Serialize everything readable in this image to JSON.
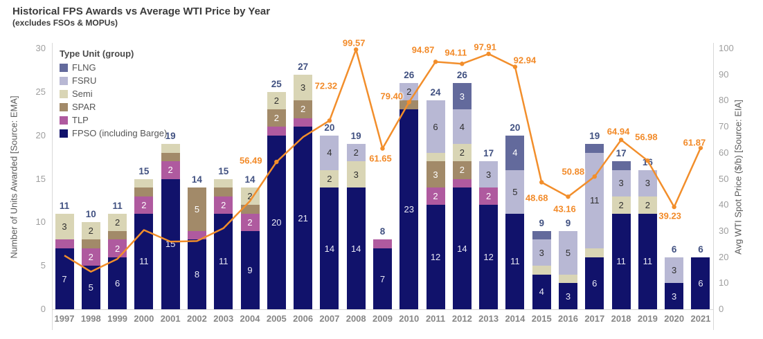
{
  "title": "Historical FPS Awards vs Average WTI Price by Year",
  "subtitle": "(excludes FSOs & MOPUs)",
  "legend": {
    "title": "Type Unit (group)",
    "items": [
      {
        "label": "FLNG",
        "color": "#636a9c"
      },
      {
        "label": "FSRU",
        "color": "#b8b8d4"
      },
      {
        "label": "Semi",
        "color": "#d9d5b5"
      },
      {
        "label": "SPAR",
        "color": "#a28a69"
      },
      {
        "label": "TLP",
        "color": "#af5a9f"
      },
      {
        "label": "FPSO (including Barge)",
        "color": "#11126b"
      }
    ]
  },
  "axes": {
    "left": {
      "title": "Number of Units Awarded [Source: EMA]",
      "ticks": [
        0,
        5,
        10,
        15,
        20,
        25,
        30
      ],
      "max": 30
    },
    "right": {
      "title": "Avg WTI Spot Price ($/b) [Source: EIA]",
      "ticks": [
        0,
        10,
        20,
        30,
        40,
        50,
        60,
        70,
        80,
        90,
        100
      ],
      "max": 100
    }
  },
  "chart_data": {
    "type": "bar+line",
    "title": "Historical FPS Awards vs Average WTI Price by Year",
    "categories": [
      "1997",
      "1998",
      "1999",
      "2000",
      "2001",
      "2002",
      "2003",
      "2004",
      "2005",
      "2006",
      "2007",
      "2008",
      "2009",
      "2010",
      "2011",
      "2012",
      "2013",
      "2014",
      "2015",
      "2016",
      "2017",
      "2018",
      "2019",
      "2020",
      "2021"
    ],
    "stack_order_bottom_to_top": [
      "fpso",
      "tlp",
      "spar",
      "semi",
      "fsru",
      "flng"
    ],
    "series": [
      {
        "key": "fpso",
        "name": "FPSO (including Barge)",
        "color": "#11126b",
        "values": [
          7,
          5,
          6,
          11,
          15,
          8,
          11,
          9,
          20,
          21,
          14,
          14,
          7,
          23,
          12,
          14,
          12,
          11,
          4,
          3,
          6,
          11,
          11,
          3,
          6
        ]
      },
      {
        "key": "tlp",
        "name": "TLP",
        "color": "#af5a9f",
        "values": [
          1,
          2,
          2,
          2,
          2,
          1,
          2,
          2,
          1,
          1,
          0,
          0,
          1,
          0,
          2,
          1,
          2,
          0,
          0,
          0,
          0,
          0,
          0,
          0,
          0
        ]
      },
      {
        "key": "spar",
        "name": "SPAR",
        "color": "#a28a69",
        "values": [
          0,
          1,
          1,
          1,
          1,
          5,
          1,
          1,
          2,
          2,
          0,
          0,
          0,
          1,
          3,
          2,
          0,
          0,
          0,
          0,
          0,
          0,
          0,
          0,
          0
        ]
      },
      {
        "key": "semi",
        "name": "Semi",
        "color": "#d9d5b5",
        "values": [
          3,
          2,
          2,
          1,
          1,
          0,
          1,
          2,
          2,
          3,
          2,
          3,
          0,
          0,
          1,
          2,
          0,
          0,
          1,
          1,
          1,
          2,
          2,
          0,
          0
        ]
      },
      {
        "key": "fsru",
        "name": "FSRU",
        "color": "#b8b8d4",
        "values": [
          0,
          0,
          0,
          0,
          0,
          0,
          0,
          0,
          0,
          0,
          4,
          2,
          0,
          2,
          6,
          4,
          3,
          5,
          3,
          5,
          11,
          3,
          3,
          3,
          0
        ]
      },
      {
        "key": "flng",
        "name": "FLNG",
        "color": "#636a9c",
        "values": [
          0,
          0,
          0,
          0,
          0,
          0,
          0,
          0,
          0,
          0,
          0,
          0,
          0,
          0,
          0,
          3,
          0,
          4,
          1,
          0,
          1,
          1,
          0,
          0,
          0
        ]
      }
    ],
    "totals": [
      11,
      10,
      11,
      15,
      19,
      14,
      15,
      14,
      25,
      27,
      20,
      19,
      8,
      26,
      24,
      26,
      17,
      20,
      9,
      9,
      19,
      17,
      16,
      6,
      6
    ],
    "line_series": {
      "name": "Avg WTI Spot Price ($/b)",
      "color": "#f28e2b",
      "values": [
        20.61,
        14.39,
        19.31,
        30.37,
        25.93,
        26.16,
        31.06,
        41.49,
        56.49,
        66.02,
        72.32,
        99.57,
        61.65,
        79.4,
        94.87,
        94.11,
        97.91,
        92.94,
        48.68,
        43.16,
        50.88,
        64.94,
        56.98,
        39.23,
        61.87
      ],
      "point_labels": [
        null,
        null,
        null,
        null,
        null,
        null,
        null,
        null,
        "56.49",
        null,
        "72.32",
        "99.57",
        "61.65",
        "79.40",
        "94.87",
        "94.11",
        "97.91",
        "92.94",
        "48.68",
        "43.16",
        "50.88",
        "64.94",
        "56.98",
        "39.23",
        "61.87"
      ]
    },
    "axes_hint": {
      "left_range": [
        0,
        30
      ],
      "right_range": [
        0,
        100
      ],
      "grid": false,
      "legend_position": "top-left-inside"
    }
  }
}
